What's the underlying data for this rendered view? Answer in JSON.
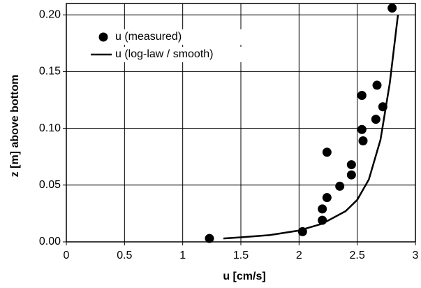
{
  "chart_data": {
    "type": "scatter-line",
    "x_label": "u [cm/s]",
    "y_label": "z [m] above bottom",
    "xlim": [
      0,
      3
    ],
    "xticks": [
      0,
      0.5,
      1,
      1.5,
      2,
      2.5,
      3
    ],
    "ylim": [
      0,
      0.21
    ],
    "yticks": [
      {
        "value": 0,
        "label": "0.00"
      },
      {
        "value": 0.05,
        "label": "0.05"
      },
      {
        "value": 0.1,
        "label": "0.10"
      },
      {
        "value": 0.15,
        "label": "0.15"
      },
      {
        "value": 0.2,
        "label": "0.20"
      }
    ],
    "grid": true,
    "legend": "upper left",
    "series": [
      {
        "name": "u (measured)",
        "kind": "scatter",
        "color": "#000000",
        "x": [
          1.23,
          2.03,
          2.2,
          2.2,
          2.24,
          2.35,
          2.45,
          2.45,
          2.24,
          2.55,
          2.54,
          2.66,
          2.72,
          2.54,
          2.67,
          2.8
        ],
        "values": [
          0.003,
          0.009,
          0.019,
          0.029,
          0.039,
          0.049,
          0.059,
          0.068,
          0.079,
          0.089,
          0.099,
          0.108,
          0.119,
          0.129,
          0.138,
          0.206
        ]
      },
      {
        "name": "u (log-law / smooth)",
        "kind": "line",
        "color": "#000000",
        "x": [
          1.35,
          1.5,
          1.75,
          2.0,
          2.2,
          2.4,
          2.5,
          2.6,
          2.7,
          2.78,
          2.85
        ],
        "values": [
          0.003,
          0.004,
          0.006,
          0.01,
          0.016,
          0.027,
          0.037,
          0.055,
          0.09,
          0.14,
          0.2
        ]
      }
    ]
  }
}
